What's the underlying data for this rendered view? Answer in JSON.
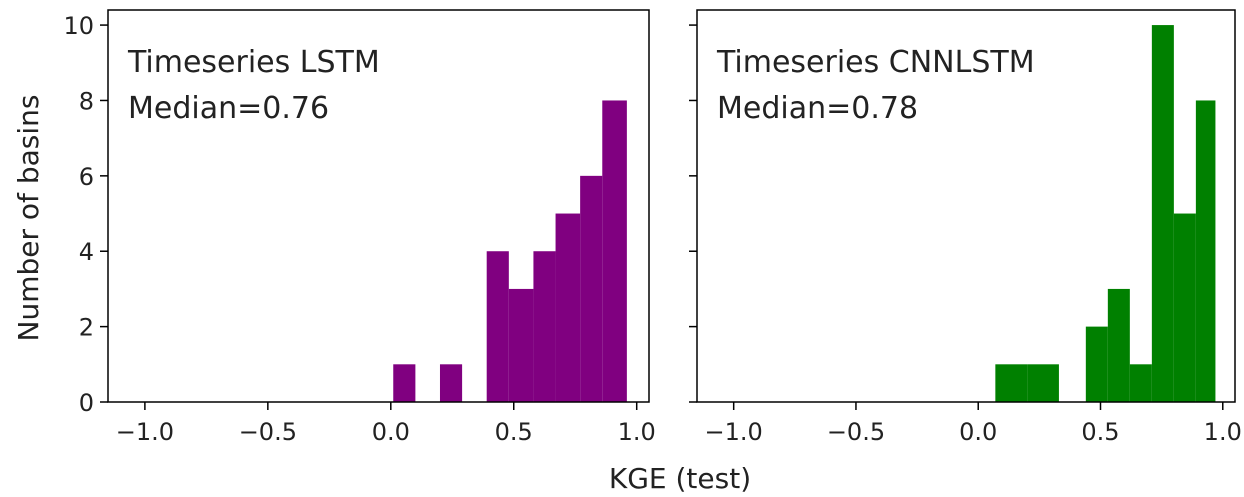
{
  "chart_data": [
    {
      "type": "bar",
      "annotation": [
        "Timeseries LSTM",
        "Median=0.76"
      ],
      "xlim": [
        -1.15,
        1.05
      ],
      "ylim": [
        0,
        10.4
      ],
      "xticks": [
        -1.0,
        -0.5,
        0.0,
        0.5,
        1.0
      ],
      "xtick_labels": [
        "−1.0",
        "−0.5",
        "0.0",
        "0.5",
        "1.0"
      ],
      "yticks": [
        0,
        2,
        4,
        6,
        8,
        10
      ],
      "ytick_labels": [
        "0",
        "2",
        "4",
        "6",
        "8",
        "10"
      ],
      "show_y_tick_labels": true,
      "color": "#800080",
      "bins": [
        {
          "x0": 0.01,
          "x1": 0.1,
          "count": 1
        },
        {
          "x0": 0.2,
          "x1": 0.29,
          "count": 1
        },
        {
          "x0": 0.39,
          "x1": 0.48,
          "count": 4
        },
        {
          "x0": 0.48,
          "x1": 0.58,
          "count": 3
        },
        {
          "x0": 0.58,
          "x1": 0.67,
          "count": 4
        },
        {
          "x0": 0.67,
          "x1": 0.77,
          "count": 5
        },
        {
          "x0": 0.77,
          "x1": 0.86,
          "count": 6
        },
        {
          "x0": 0.86,
          "x1": 0.96,
          "count": 8
        }
      ]
    },
    {
      "type": "bar",
      "annotation": [
        "Timeseries CNNLSTM",
        "Median=0.78"
      ],
      "xlim": [
        -1.15,
        1.05
      ],
      "ylim": [
        0,
        10.4
      ],
      "xticks": [
        -1.0,
        -0.5,
        0.0,
        0.5,
        1.0
      ],
      "xtick_labels": [
        "−1.0",
        "−0.5",
        "0.0",
        "0.5",
        "1.0"
      ],
      "yticks": [
        0,
        2,
        4,
        6,
        8,
        10
      ],
      "ytick_labels": [
        "",
        "",
        "",
        "",
        "",
        ""
      ],
      "show_y_tick_labels": false,
      "color": "#008000",
      "bins": [
        {
          "x0": 0.07,
          "x1": 0.2,
          "count": 1
        },
        {
          "x0": 0.2,
          "x1": 0.33,
          "count": 1
        },
        {
          "x0": 0.44,
          "x1": 0.53,
          "count": 2
        },
        {
          "x0": 0.53,
          "x1": 0.62,
          "count": 3
        },
        {
          "x0": 0.62,
          "x1": 0.71,
          "count": 1
        },
        {
          "x0": 0.71,
          "x1": 0.8,
          "count": 10
        },
        {
          "x0": 0.8,
          "x1": 0.89,
          "count": 5
        },
        {
          "x0": 0.89,
          "x1": 0.97,
          "count": 8
        }
      ]
    }
  ],
  "shared": {
    "xlabel": "KGE (test)",
    "ylabel": "Number  of basins"
  }
}
